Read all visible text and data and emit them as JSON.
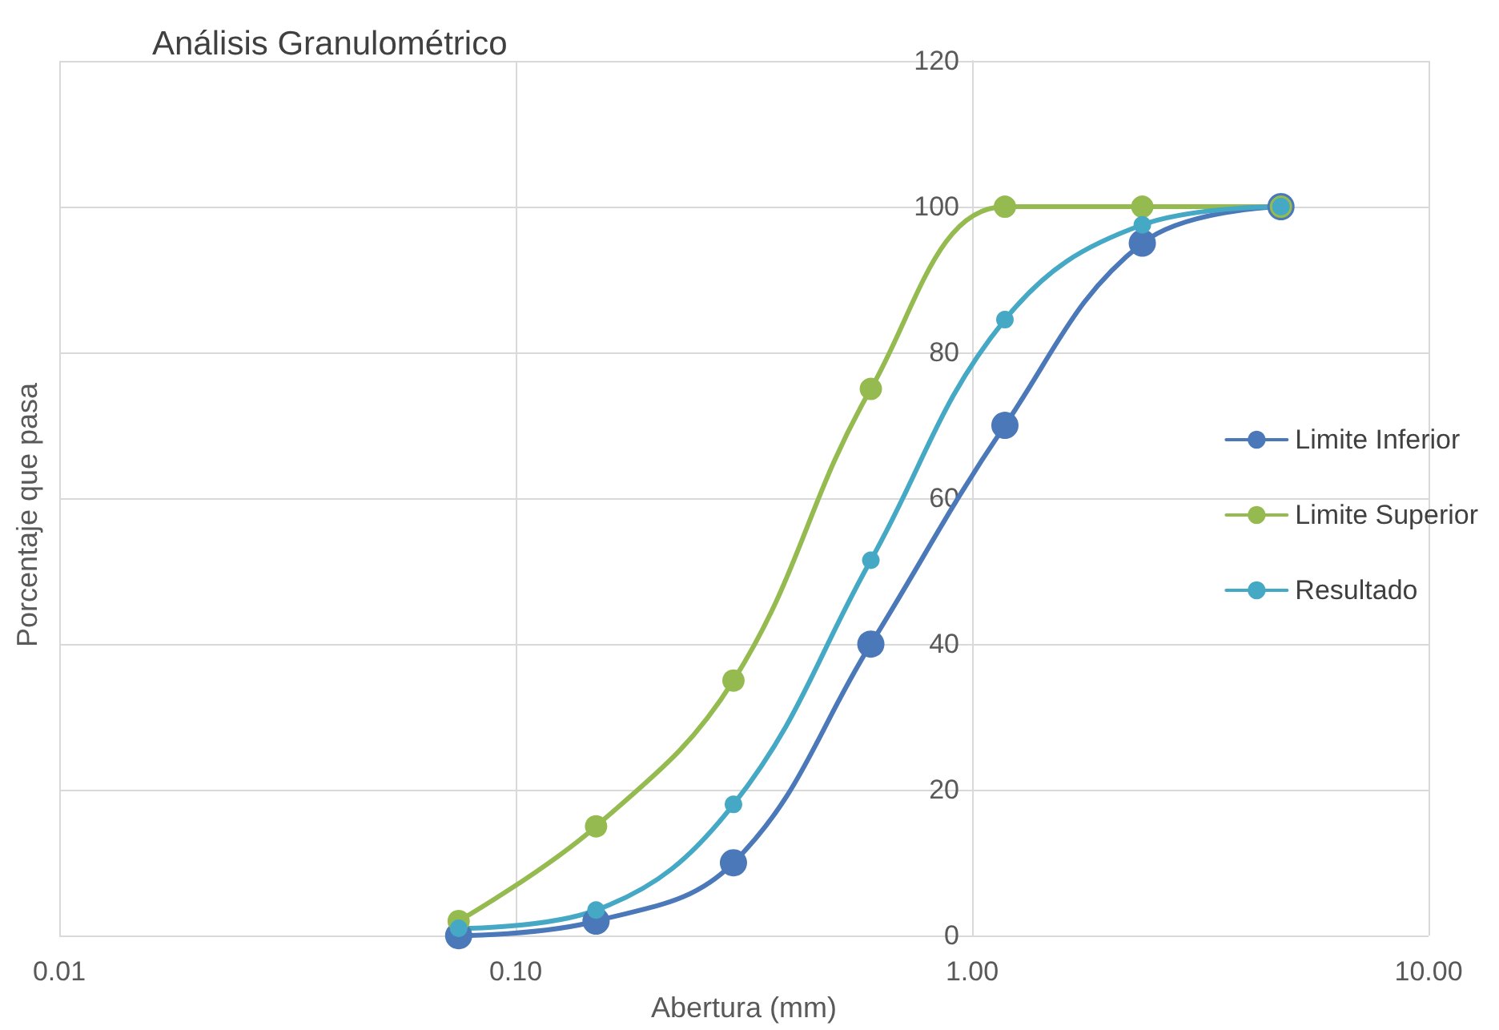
{
  "chart_data": {
    "type": "line",
    "title": "Análisis Granulométrico",
    "xlabel": "Abertura (mm)",
    "ylabel": "Porcentaje que pasa",
    "x": [
      0.075,
      0.15,
      0.3,
      0.6,
      1.18,
      2.36,
      4.75
    ],
    "series": [
      {
        "name": "Limite Inferior",
        "color": "#4a78b8",
        "values": [
          0,
          2,
          10,
          40,
          70,
          95,
          100
        ]
      },
      {
        "name": "Limite Superior",
        "color": "#95bb50",
        "values": [
          2,
          15,
          35,
          75,
          100,
          100,
          100
        ]
      },
      {
        "name": "Resultado",
        "color": "#45a8c4",
        "values": [
          1,
          3.5,
          18,
          51.5,
          84.5,
          97.5,
          100
        ]
      }
    ],
    "log": "x",
    "xlim": [
      0.01,
      10
    ],
    "xticks": [
      {
        "value": 0.01,
        "label": "0.01"
      },
      {
        "value": 0.1,
        "label": "0.10"
      },
      {
        "value": 1,
        "label": "1.00"
      },
      {
        "value": 10,
        "label": "10.00"
      }
    ],
    "ylim": [
      0,
      120
    ],
    "yticks": [
      0,
      20,
      40,
      60,
      80,
      100,
      120
    ],
    "grid": true,
    "legend": "right",
    "marker": "circle",
    "line_style": "solid"
  }
}
